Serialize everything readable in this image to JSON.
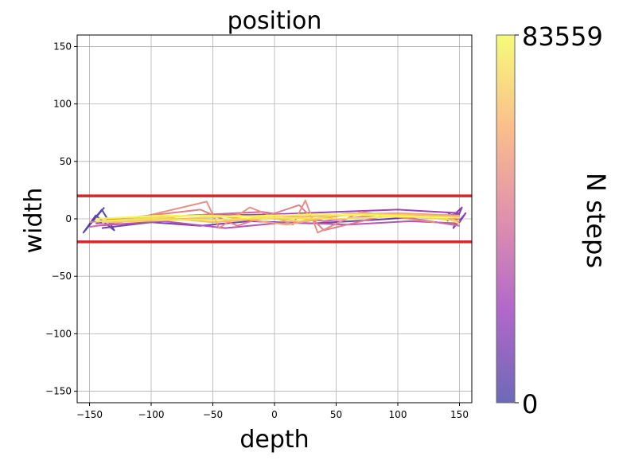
{
  "chart_data": {
    "type": "line",
    "title": "position",
    "xlabel": "depth",
    "ylabel": "width",
    "xlim": [
      -160,
      160
    ],
    "ylim": [
      -160,
      160
    ],
    "xticks": [
      -150,
      -100,
      -50,
      0,
      50,
      100,
      150
    ],
    "yticks": [
      -150,
      -100,
      -50,
      0,
      50,
      100,
      150
    ],
    "xtick_labels": [
      "−150",
      "−100",
      "−50",
      "0",
      "50",
      "100",
      "150"
    ],
    "ytick_labels": [
      "−150",
      "−100",
      "−50",
      "0",
      "50",
      "100",
      "150"
    ],
    "grid": true,
    "boundary_lines": [
      {
        "y": 20,
        "color": "#d62728"
      },
      {
        "y": -20,
        "color": "#d62728"
      }
    ],
    "colorbar": {
      "label": "N steps",
      "min": 0,
      "max": 83559,
      "min_label": "0",
      "max_label": "83559",
      "colormap": "plasma"
    },
    "trajectory_segments": [
      {
        "t": 0.05,
        "points": [
          [
            -150,
            -5
          ],
          [
            -140,
            8
          ],
          [
            -130,
            -10
          ],
          [
            -145,
            3
          ],
          [
            -155,
            -12
          ],
          [
            -138,
            10
          ]
        ]
      },
      {
        "t": 0.12,
        "points": [
          [
            -140,
            -8
          ],
          [
            -100,
            -3
          ],
          [
            -60,
            -6
          ],
          [
            -20,
            -2
          ],
          [
            30,
            -4
          ],
          [
            80,
            -1
          ],
          [
            120,
            2
          ],
          [
            150,
            4
          ]
        ]
      },
      {
        "t": 0.18,
        "points": [
          [
            140,
            6
          ],
          [
            150,
            -3
          ],
          [
            155,
            5
          ],
          [
            145,
            -8
          ],
          [
            152,
            10
          ],
          [
            140,
            -2
          ]
        ]
      },
      {
        "t": 0.25,
        "points": [
          [
            150,
            5
          ],
          [
            100,
            8
          ],
          [
            50,
            6
          ],
          [
            0,
            4
          ],
          [
            -50,
            3
          ],
          [
            -100,
            2
          ],
          [
            -145,
            -4
          ]
        ]
      },
      {
        "t": 0.35,
        "points": [
          [
            -145,
            -6
          ],
          [
            -90,
            -2
          ],
          [
            -40,
            -8
          ],
          [
            10,
            -3
          ],
          [
            60,
            -5
          ],
          [
            110,
            -2
          ],
          [
            150,
            -4
          ]
        ]
      },
      {
        "t": 0.45,
        "points": [
          [
            150,
            -6
          ],
          [
            90,
            4
          ],
          [
            40,
            -2
          ],
          [
            -10,
            6
          ],
          [
            -70,
            3
          ],
          [
            -120,
            -2
          ],
          [
            -150,
            -7
          ]
        ]
      },
      {
        "t": 0.55,
        "points": [
          [
            -150,
            -3
          ],
          [
            -60,
            8
          ],
          [
            -30,
            -6
          ],
          [
            20,
            12
          ],
          [
            40,
            -10
          ],
          [
            90,
            3
          ],
          [
            150,
            0
          ]
        ]
      },
      {
        "t": 0.62,
        "points": [
          [
            -130,
            -4
          ],
          [
            -55,
            15
          ],
          [
            -45,
            -8
          ],
          [
            -20,
            10
          ],
          [
            15,
            -5
          ],
          [
            25,
            16
          ],
          [
            35,
            -12
          ],
          [
            70,
            6
          ],
          [
            130,
            -3
          ]
        ]
      },
      {
        "t": 0.7,
        "points": [
          [
            150,
            3
          ],
          [
            100,
            5
          ],
          [
            60,
            4
          ],
          [
            10,
            -5
          ],
          [
            -40,
            2
          ],
          [
            -90,
            -1
          ],
          [
            -145,
            -2
          ]
        ]
      },
      {
        "t": 0.78,
        "points": [
          [
            -145,
            0
          ],
          [
            -100,
            2
          ],
          [
            -50,
            -3
          ],
          [
            0,
            1
          ],
          [
            50,
            3
          ],
          [
            100,
            4
          ],
          [
            150,
            2
          ]
        ]
      },
      {
        "t": 0.85,
        "points": [
          [
            150,
            -2
          ],
          [
            110,
            3
          ],
          [
            60,
            5
          ],
          [
            20,
            -2
          ],
          [
            -30,
            3
          ],
          [
            -80,
            -1
          ],
          [
            -140,
            -3
          ]
        ]
      },
      {
        "t": 0.9,
        "points": [
          [
            -140,
            -2
          ],
          [
            -100,
            1
          ],
          [
            -60,
            3
          ],
          [
            -10,
            2
          ],
          [
            40,
            4
          ],
          [
            90,
            3
          ],
          [
            140,
            0
          ],
          [
            150,
            -4
          ]
        ]
      },
      {
        "t": 0.95,
        "points": [
          [
            150,
            1
          ],
          [
            100,
            2
          ],
          [
            50,
            0
          ],
          [
            0,
            1
          ],
          [
            -50,
            -1
          ],
          [
            -100,
            0
          ],
          [
            -145,
            -2
          ]
        ]
      },
      {
        "t": 1.0,
        "points": [
          [
            -145,
            0
          ],
          [
            -90,
            3
          ],
          [
            -30,
            2
          ],
          [
            30,
            4
          ],
          [
            90,
            3
          ],
          [
            145,
            1
          ]
        ]
      }
    ]
  }
}
